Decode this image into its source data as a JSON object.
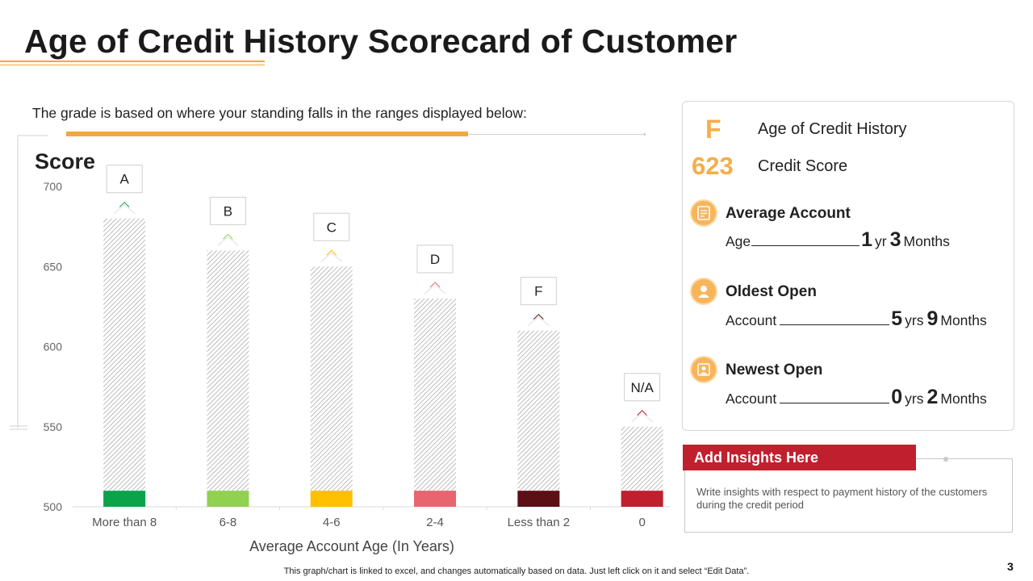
{
  "page": {
    "title": "Age of Credit History Scorecard of Customer",
    "subtitle": "The grade is based on where your standing falls in the ranges displayed below:",
    "footer": "This graph/chart is linked to excel,  and changes automatically based on data. Just left click on it and select “Edit Data”.",
    "page_number": "3"
  },
  "chart_data": {
    "type": "bar",
    "title": "Score",
    "xlabel": "Average Account Age (In Years)",
    "ylabel": "Score",
    "ylim": [
      500,
      700
    ],
    "yticks": [
      700,
      650,
      600,
      550,
      500
    ],
    "categories": [
      "More than 8",
      "6-8",
      "4-6",
      "2-4",
      "Less than 2",
      "0"
    ],
    "values": [
      680,
      660,
      650,
      630,
      610,
      550
    ],
    "grades": [
      "A",
      "B",
      "C",
      "D",
      "F",
      "N/A"
    ],
    "band_colors": [
      "#0aa34a",
      "#92d050",
      "#ffc000",
      "#e8646f",
      "#5c1016",
      "#c0202e"
    ]
  },
  "card": {
    "grade": "F",
    "grade_label": "Age of Credit History",
    "score": "623",
    "score_label": "Credit Score",
    "stats": [
      {
        "title": "Average Account",
        "prefix": "Age",
        "n1": "1",
        "u1": "yr",
        "n2": "3",
        "u2": "Months",
        "icon": "document-icon"
      },
      {
        "title": "Oldest Open",
        "prefix": "Account",
        "n1": "5",
        "u1": "yrs",
        "n2": "9",
        "u2": "Months",
        "icon": "person-icon"
      },
      {
        "title": "Newest Open",
        "prefix": "Account",
        "n1": "0",
        "u1": "yrs",
        "n2": "2",
        "u2": "Months",
        "icon": "user-card-icon"
      }
    ]
  },
  "insights": {
    "header": "Add Insights Here",
    "body": "Write insights with  respect to payment history of the customers during the credit period"
  },
  "colors": {
    "accent": "#f2a83a",
    "grade": "#f5ae4a",
    "insight_header": "#c0202e"
  }
}
